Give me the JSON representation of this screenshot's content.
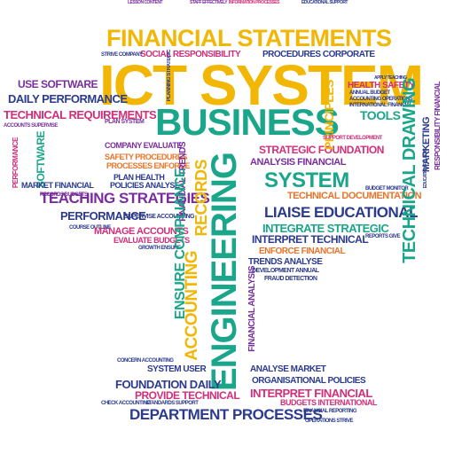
{
  "colors": {
    "yellow": "#f2b705",
    "teal": "#1aa68a",
    "navy": "#2b3a8f",
    "purple": "#7a2e9e",
    "magenta": "#d12f7a",
    "orange": "#e8742a",
    "green": "#3f9a3a",
    "blue": "#2c6fb5"
  },
  "words": {
    "ict_system": "ICT SYSTEM",
    "engineering": "ENGINEERING",
    "financial_statements": "FINANCIAL STATEMENTS",
    "business": "BUSINESS",
    "system": "SYSTEM",
    "department_processes": "DEPARTMENT PROCESSES",
    "ensure_compliance": "ENSURE COMPLIANCE",
    "records": "RECORDS",
    "accounting": "ACCOUNTING",
    "liaise_educational": "LIAISE EDUCATIONAL",
    "teaching_strategies": "TEACHING STRATEGIES",
    "technical_requirements": "TECHNICAL REQUIREMENTS",
    "technical_drawing": "TECHNICAL DRAWING",
    "strategic_foundation": "STRATEGIC FOUNDATION",
    "use_software": "USE SOFTWARE",
    "daily_performance": "DAILY PERFORMANCE",
    "foundation_daily": "FOUNDATION DAILY",
    "provide_technical": "PROVIDE TECHNICAL",
    "interpret_financial": "INTERPRET FINANCIAL",
    "interpret_technical": "INTERPRET TECHNICAL",
    "integrate_strategic": "INTEGRATE STRATEGIC",
    "manage_accounts": "MANAGE ACCOUNTS",
    "performance": "PERFORMANCE",
    "analysis_financial": "ANALYSIS FINANCIAL",
    "technical_documentation": "TECHNICAL DOCUMENTATION",
    "social_responsibility": "SOCIAL RESPONSIBILITY",
    "procedures_corporate": "PROCEDURES CORPORATE",
    "principles": "PRINCIPLES",
    "tools": "TOOLS",
    "marketing": "MARKETING",
    "software": "SOFTWARE",
    "organisational_policies": "ORGANISATIONAL POLICIES",
    "budgets_international": "BUDGETS INTERNATIONAL",
    "system_user": "SYSTEM USER",
    "analyse_market": "ANALYSE MARKET",
    "trends_analyse": "TRENDS ANALYSE",
    "plan_health": "PLAN HEALTH",
    "policies_analyse": "POLICIES ANALYSE",
    "health_safety": "HEALTH SAFETY",
    "company_evaluate": "COMPANY EVALUATE",
    "evaluate_budgets": "EVALUATE BUDGETS",
    "enforce_financial": "ENFORCE FINANCIAL",
    "corporate_social": "CORPORATE SOCIAL",
    "market_financial": "MARKET FINANCIAL",
    "financial_analysis": "FINANCIAL ANALYSIS",
    "responsibility_financial": "RESPONSIBILITY FINANCIAL",
    "safety_procedures": "SAFETY PROCEDURES",
    "processes_enforce": "PROCESSES ENFORCE",
    "financial_reporting": "FINANCIAL REPORTING",
    "operations_strive": "OPERATIONS STRIVE",
    "check_accounting": "CHECK ACCOUNTING",
    "standards_support": "STANDARDS SUPPORT",
    "supervise_accounting": "SUPERVISE ACCOUNTING",
    "fraud_detection": "FRAUD DETECTION",
    "budget_monitor": "BUDGET MONITOR",
    "financial_trends": "FINANCIAL TRENDS",
    "concern_accounting": "CONCERN ACCOUNTING",
    "accounts_supervise": "ACCOUNTS SUPERVISE",
    "development_annual": "DEVELOPMENT ANNUAL",
    "support_development": "SUPPORT DEVELOPMENT",
    "records_budgets": "RECORDS BUDGETS",
    "growth_ensure": "GROWTH ENSURE",
    "planning_strategic": "PLANNING STRATEGIC",
    "interpret_daily": "INTERPRET DAILY",
    "educational_support": "EDUCATIONAL SUPPORT",
    "reports_give": "REPORTS GIVE",
    "apply_teaching": "APPLY TEACHING",
    "lesson_content": "LESSON CONTENT",
    "annual_budget": "ANNUAL BUDGET",
    "accounting_operations": "ACCOUNTING OPERATIONS",
    "international_financial": "INTERNATIONAL FINANCIAL",
    "plan_system": "PLAN SYSTEM",
    "course_outline": "COURSE OUTLINE",
    "education_follow": "EDUCATION FOLLOW",
    "company_standards": "COMPANY STANDARDS",
    "daily_analyse": "DAILY ANALYSE",
    "accounts": "ACCOUNTS",
    "processes": "PROCESSES",
    "strive_company": "STRIVE COMPANY",
    "information_processes": "INFORMATION PROCESSES",
    "staff_effectively": "STAFF EFFECTIVELY"
  }
}
